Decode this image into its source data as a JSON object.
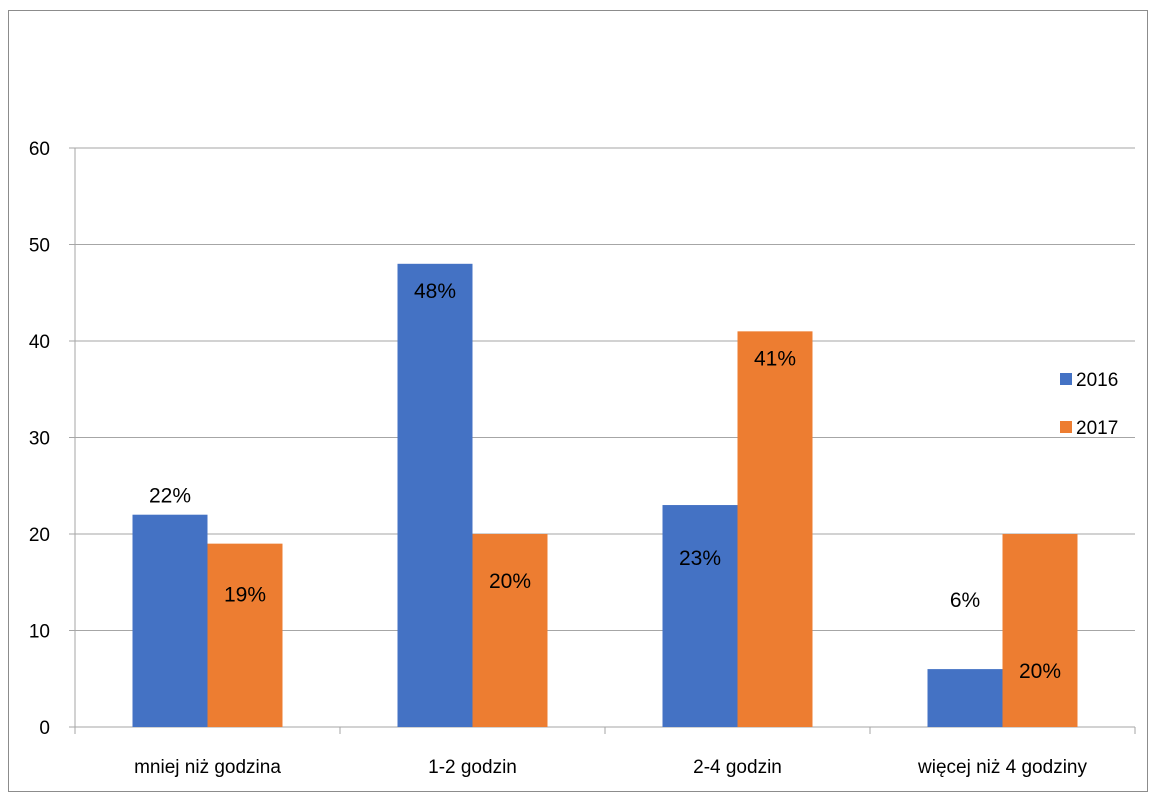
{
  "chart_data": {
    "type": "bar",
    "title": "",
    "xlabel": "",
    "ylabel": "",
    "ylim": [
      0,
      60
    ],
    "yticks": [
      0,
      10,
      20,
      30,
      40,
      50,
      60
    ],
    "grid": true,
    "legend_position": "right",
    "categories": [
      "mniej niż godzina",
      "1-2 godzin",
      "2-4 godzin",
      "więcej niż 4 godziny"
    ],
    "series": [
      {
        "name": "2016",
        "color": "#4472C4",
        "values": [
          22,
          48,
          23,
          6
        ],
        "labels": [
          "22%",
          "48%",
          "23%",
          "6%"
        ]
      },
      {
        "name": "2017",
        "color": "#ED7D31",
        "values": [
          19,
          20,
          41,
          20
        ],
        "labels": [
          "19%",
          "20%",
          "41%",
          "20%"
        ]
      }
    ]
  }
}
